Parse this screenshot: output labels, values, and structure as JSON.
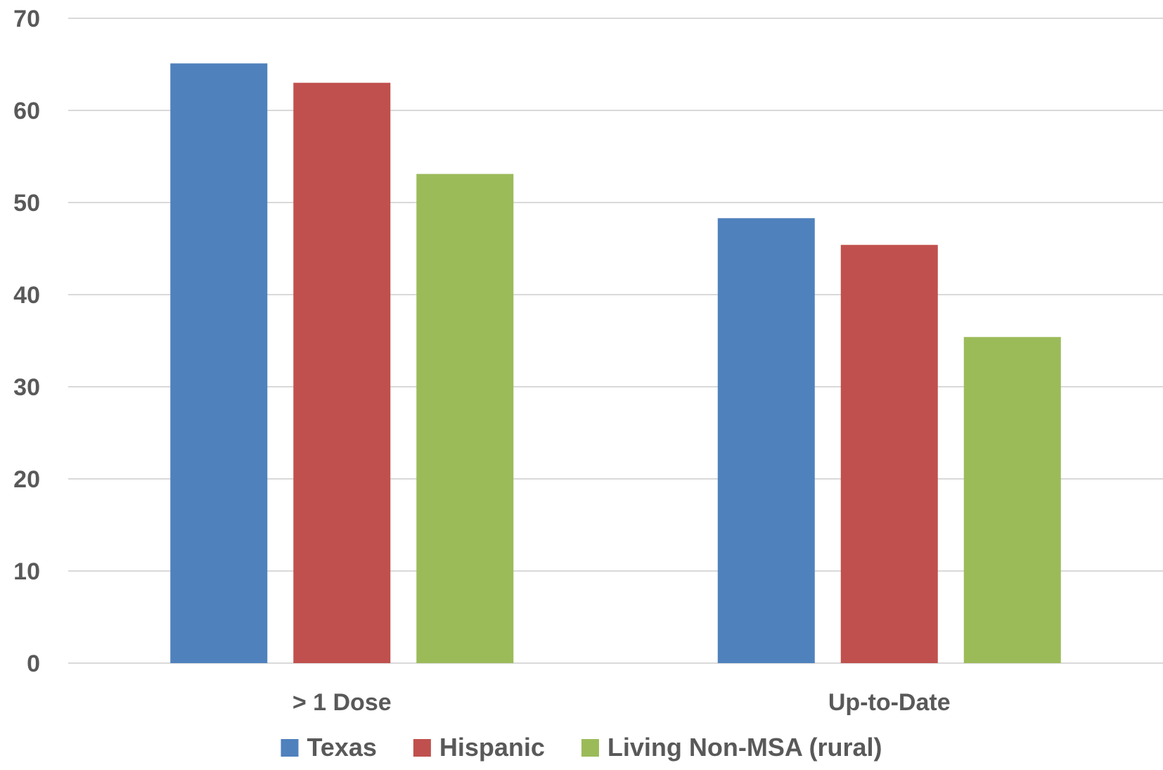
{
  "chart_data": {
    "type": "bar",
    "title": "",
    "xlabel": "",
    "ylabel": "",
    "categories": [
      "> 1 Dose",
      "Up-to-Date"
    ],
    "series": [
      {
        "name": "Texas",
        "color": "#4F81BD",
        "values": [
          65.1,
          48.3
        ]
      },
      {
        "name": "Hispanic",
        "color": "#C0504D",
        "values": [
          63.0,
          45.4
        ]
      },
      {
        "name": "Living Non-MSA (rural)",
        "color": "#9BBB59",
        "values": [
          53.1,
          35.4
        ]
      }
    ],
    "ylim": [
      0,
      70
    ],
    "yticks": [
      0,
      10,
      20,
      30,
      40,
      50,
      60,
      70
    ],
    "grid": true,
    "legend_position": "bottom"
  }
}
